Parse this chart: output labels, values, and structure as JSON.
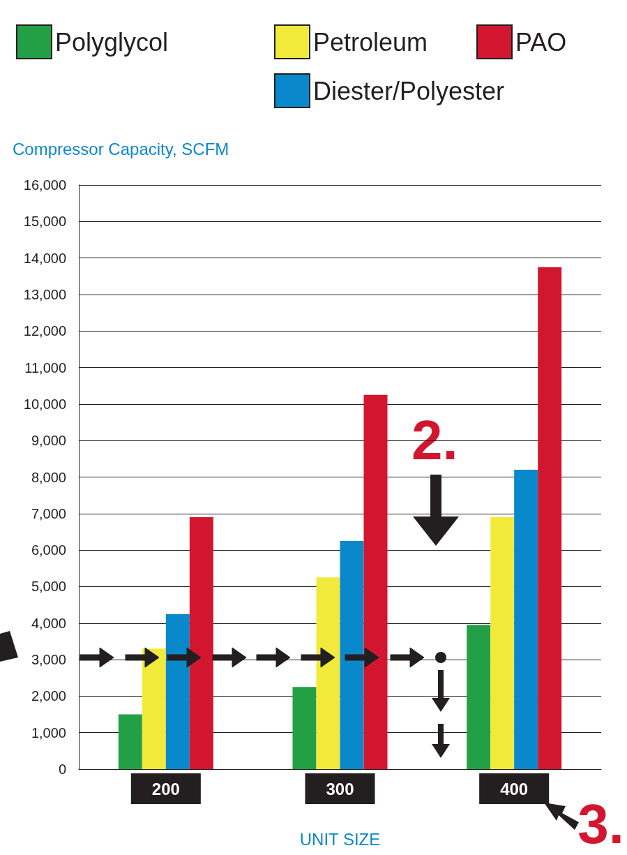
{
  "chart_data": {
    "type": "bar",
    "ylabel": "Compressor Capacity, SCFM",
    "xlabel": "UNIT SIZE",
    "categories": [
      "200",
      "300",
      "400"
    ],
    "series": [
      {
        "name": "Polyglycol",
        "color": "#23a045",
        "values": [
          1500,
          2250,
          3950
        ]
      },
      {
        "name": "Petroleum",
        "color": "#f2ea3a",
        "values": [
          3300,
          5250,
          6900
        ]
      },
      {
        "name": "Diester/Polyester",
        "color": "#0a88cc",
        "values": [
          4250,
          6250,
          8200
        ]
      },
      {
        "name": "PAO",
        "color": "#d3162f",
        "values": [
          6900,
          10250,
          13750
        ]
      }
    ],
    "ylim": [
      0,
      16000
    ],
    "yticks": [
      0,
      {
        "value": 1000,
        "label": "1,000"
      },
      {
        "value": 2000,
        "label": "2,000"
      },
      {
        "value": 3000,
        "label": "3,000"
      },
      {
        "value": 4000,
        "label": "4,000"
      },
      {
        "value": 5000,
        "label": "5,000"
      },
      {
        "value": 6000,
        "label": "6,000"
      },
      {
        "value": 7000,
        "label": "7,000"
      },
      {
        "value": 8000,
        "label": "8,000"
      },
      {
        "value": 9000,
        "label": "9,000"
      },
      {
        "value": 10000,
        "label": "10,000"
      },
      {
        "value": 11000,
        "label": "11,000"
      },
      {
        "value": 12000,
        "label": "12,000"
      },
      {
        "value": 13000,
        "label": "13,000"
      },
      {
        "value": 14000,
        "label": "14,000"
      },
      {
        "value": 15000,
        "label": "15,000"
      },
      {
        "value": 16000,
        "label": "16,000"
      }
    ],
    "grid": "y",
    "legend": "top",
    "annotations": [
      "2.",
      "3."
    ]
  }
}
